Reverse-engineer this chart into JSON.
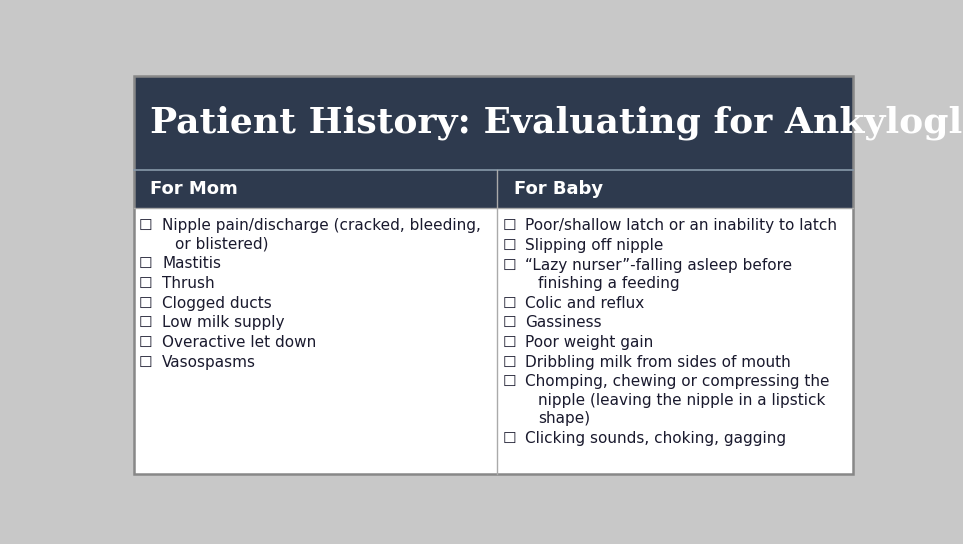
{
  "title": "Patient History: Evaluating for Ankyloglossia",
  "title_bg": "#2e3a4e",
  "title_color": "#ffffff",
  "title_fontsize": 26,
  "header_bg": "#2e3a4e",
  "header_color": "#ffffff",
  "header_fontsize": 13,
  "body_bg": "#ffffff",
  "body_color": "#1a1a2e",
  "body_fontsize": 11,
  "border_color": "#aaaaaa",
  "col1_header": "For Mom",
  "col2_header": "For Baby",
  "col1_items": [
    "Nipple pain/discharge (cracked, bleeding,\nor blistered)",
    "Mastitis",
    "Thrush",
    "Clogged ducts",
    "Low milk supply",
    "Overactive let down",
    "Vasospasms"
  ],
  "col2_items": [
    "Poor/shallow latch or an inability to latch",
    "Slipping off nipple",
    "“Lazy nurser”-falling asleep before\nfinishing a feeding",
    "Colic and reflux",
    "Gassiness",
    "Poor weight gain",
    "Dribbling milk from sides of mouth",
    "Chomping, chewing or compressing the\nnipple (leaving the nipple in a lipstick\nshape)",
    "Clicking sounds, choking, gagging"
  ],
  "fig_bg": "#c8c8c8",
  "outer_border_color": "#888888"
}
